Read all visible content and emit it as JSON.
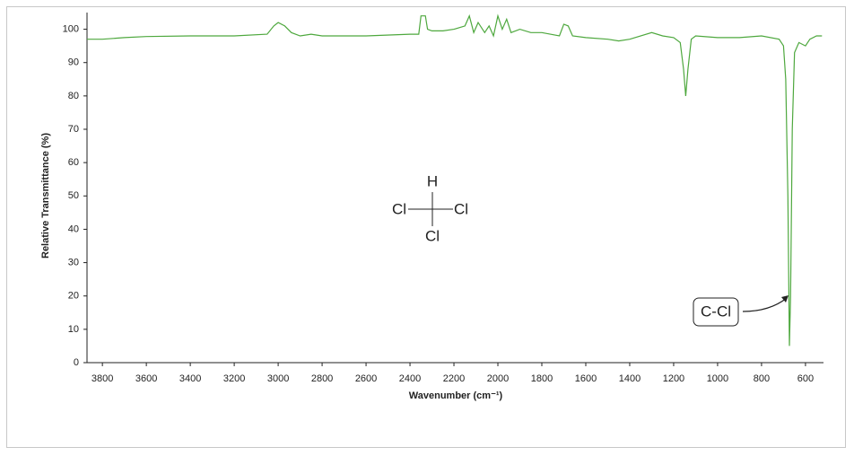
{
  "chart_data": {
    "type": "line",
    "x_label": "Wavenumber (cm⁻¹)",
    "y_label": "Relative Transmittance (%)",
    "xlim": [
      3870,
      518
    ],
    "ylim": [
      0,
      105
    ],
    "xticks": [
      3800,
      3600,
      3400,
      3200,
      3000,
      2800,
      2600,
      2400,
      2200,
      2000,
      1800,
      1600,
      1400,
      1200,
      1000,
      800,
      600
    ],
    "yticks": [
      0,
      10,
      20,
      30,
      40,
      50,
      60,
      70,
      80,
      90,
      100
    ],
    "series": [
      {
        "color": "#4ea83e",
        "x": [
          3870,
          3800,
          3700,
          3600,
          3400,
          3200,
          3050,
          3020,
          3000,
          2970,
          2940,
          2900,
          2850,
          2800,
          2600,
          2400,
          2360,
          2350,
          2330,
          2320,
          2300,
          2250,
          2200,
          2150,
          2130,
          2110,
          2090,
          2060,
          2040,
          2020,
          2000,
          1980,
          1960,
          1940,
          1900,
          1850,
          1800,
          1720,
          1700,
          1680,
          1660,
          1600,
          1500,
          1450,
          1400,
          1300,
          1250,
          1200,
          1170,
          1155,
          1145,
          1135,
          1120,
          1100,
          1000,
          900,
          800,
          720,
          700,
          690,
          680,
          673,
          668,
          660,
          650,
          630,
          600,
          580,
          550,
          525
        ],
        "values": [
          97,
          97,
          97.5,
          97.8,
          98,
          98,
          98.5,
          101,
          102,
          101,
          99,
          98,
          98.5,
          98,
          98,
          98.5,
          98.5,
          104,
          104,
          100,
          99.5,
          99.5,
          100,
          101,
          104,
          99,
          102,
          99,
          101,
          98,
          104,
          100,
          103,
          99,
          100,
          99,
          99,
          98,
          101.5,
          101,
          98,
          97.5,
          97,
          96.5,
          97,
          99,
          98,
          97.5,
          96,
          88,
          80,
          88,
          97,
          98,
          97.5,
          97.5,
          98,
          97,
          95,
          85,
          50,
          5,
          20,
          70,
          93,
          96,
          95,
          97,
          98,
          98
        ]
      }
    ],
    "annotations": [
      "C-Cl"
    ],
    "molecule_labels": [
      "H",
      "Cl",
      "Cl",
      "Cl"
    ]
  }
}
